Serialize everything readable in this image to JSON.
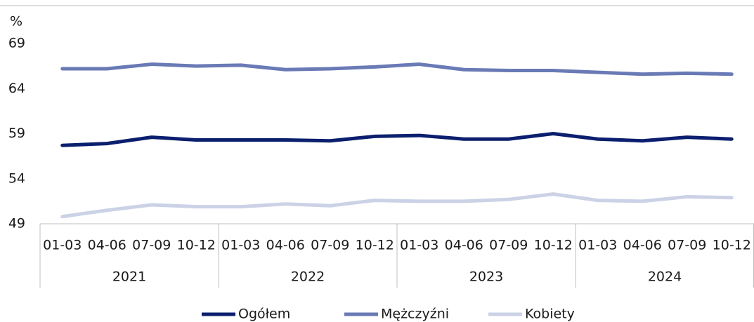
{
  "chart_data": {
    "type": "line",
    "y_label": "%",
    "categories": [
      "01-03",
      "04-06",
      "07-09",
      "10-12",
      "01-03",
      "04-06",
      "07-09",
      "10-12",
      "01-03",
      "04-06",
      "07-09",
      "10-12",
      "01-03",
      "04-06",
      "07-09",
      "10-12"
    ],
    "category_groups": [
      "2021",
      "2022",
      "2023",
      "2024"
    ],
    "series": [
      {
        "name": "Ogółem",
        "color": "#0b1f6e",
        "values": [
          57.7,
          57.9,
          58.6,
          58.3,
          58.3,
          58.3,
          58.2,
          58.7,
          58.8,
          58.4,
          58.4,
          59.0,
          58.4,
          58.2,
          58.6,
          58.4
        ]
      },
      {
        "name": "Mężczyźni",
        "color": "#6a7ab5",
        "values": [
          66.2,
          66.2,
          66.7,
          66.5,
          66.6,
          66.1,
          66.2,
          66.4,
          66.7,
          66.1,
          66.0,
          66.0,
          65.8,
          65.6,
          65.7,
          65.6
        ]
      },
      {
        "name": "Kobiety",
        "color": "#ccd2e6",
        "values": [
          49.8,
          50.5,
          51.1,
          50.9,
          50.9,
          51.2,
          51.0,
          51.6,
          51.5,
          51.5,
          51.7,
          52.3,
          51.6,
          51.5,
          52.0,
          51.9
        ]
      }
    ],
    "ylim": [
      49,
      69
    ],
    "yticks": [
      49,
      54,
      59,
      64,
      69
    ],
    "grid": false
  }
}
